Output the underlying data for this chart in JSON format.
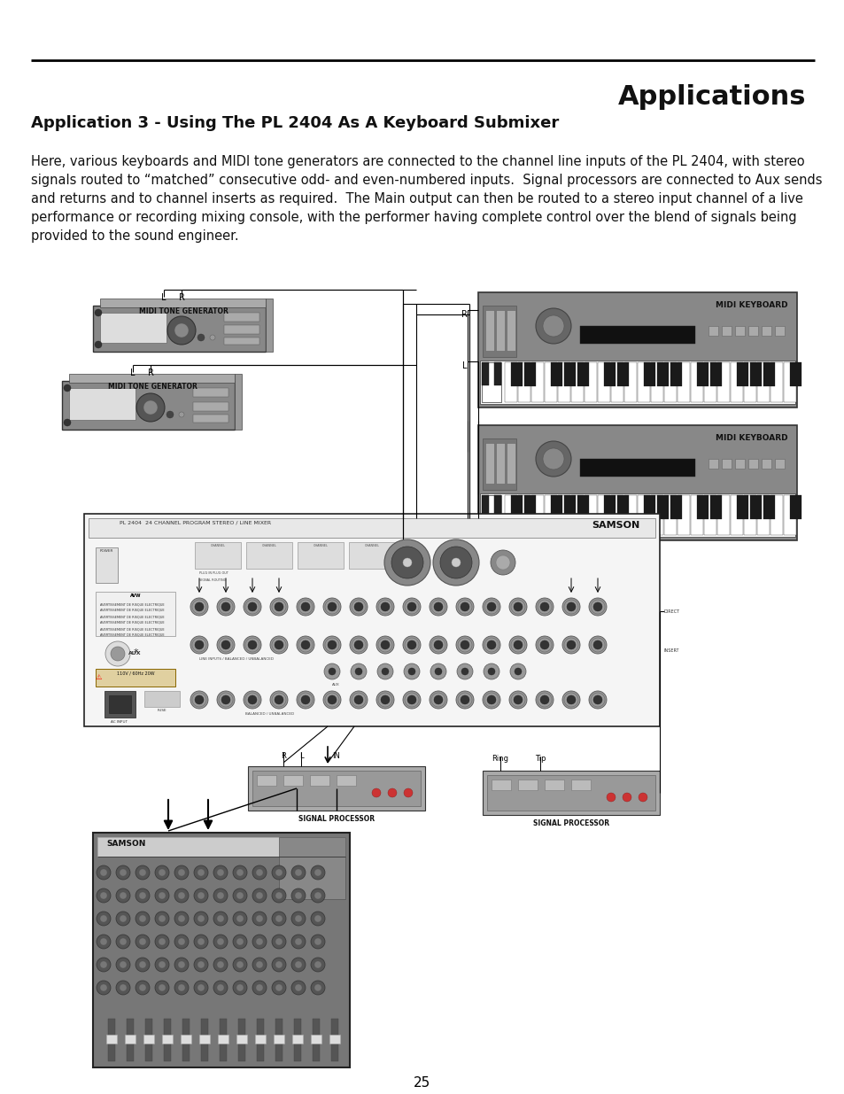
{
  "bg_color": "#ffffff",
  "page_width": 9.54,
  "page_height": 12.35,
  "header_title": "Applications",
  "header_title_fontsize": 22,
  "section_title": "Application 3 - Using The PL 2404 As A Keyboard Submixer",
  "section_title_fontsize": 13,
  "body_text": "Here, various keyboards and MIDI tone generators are connected to the channel line inputs of the PL 2404, with stereo\nsignals routed to “matched” consecutive odd- and even-numbered inputs.  Signal processors are connected to Aux sends\nand returns and to channel inserts as required.  The Main output can then be routed to a stereo input channel of a live\nperformance or recording mixing console, with the performer having complete control over the blend of signals being\nprovided to the sound engineer.",
  "body_text_fontsize": 10.5,
  "page_num": "25"
}
